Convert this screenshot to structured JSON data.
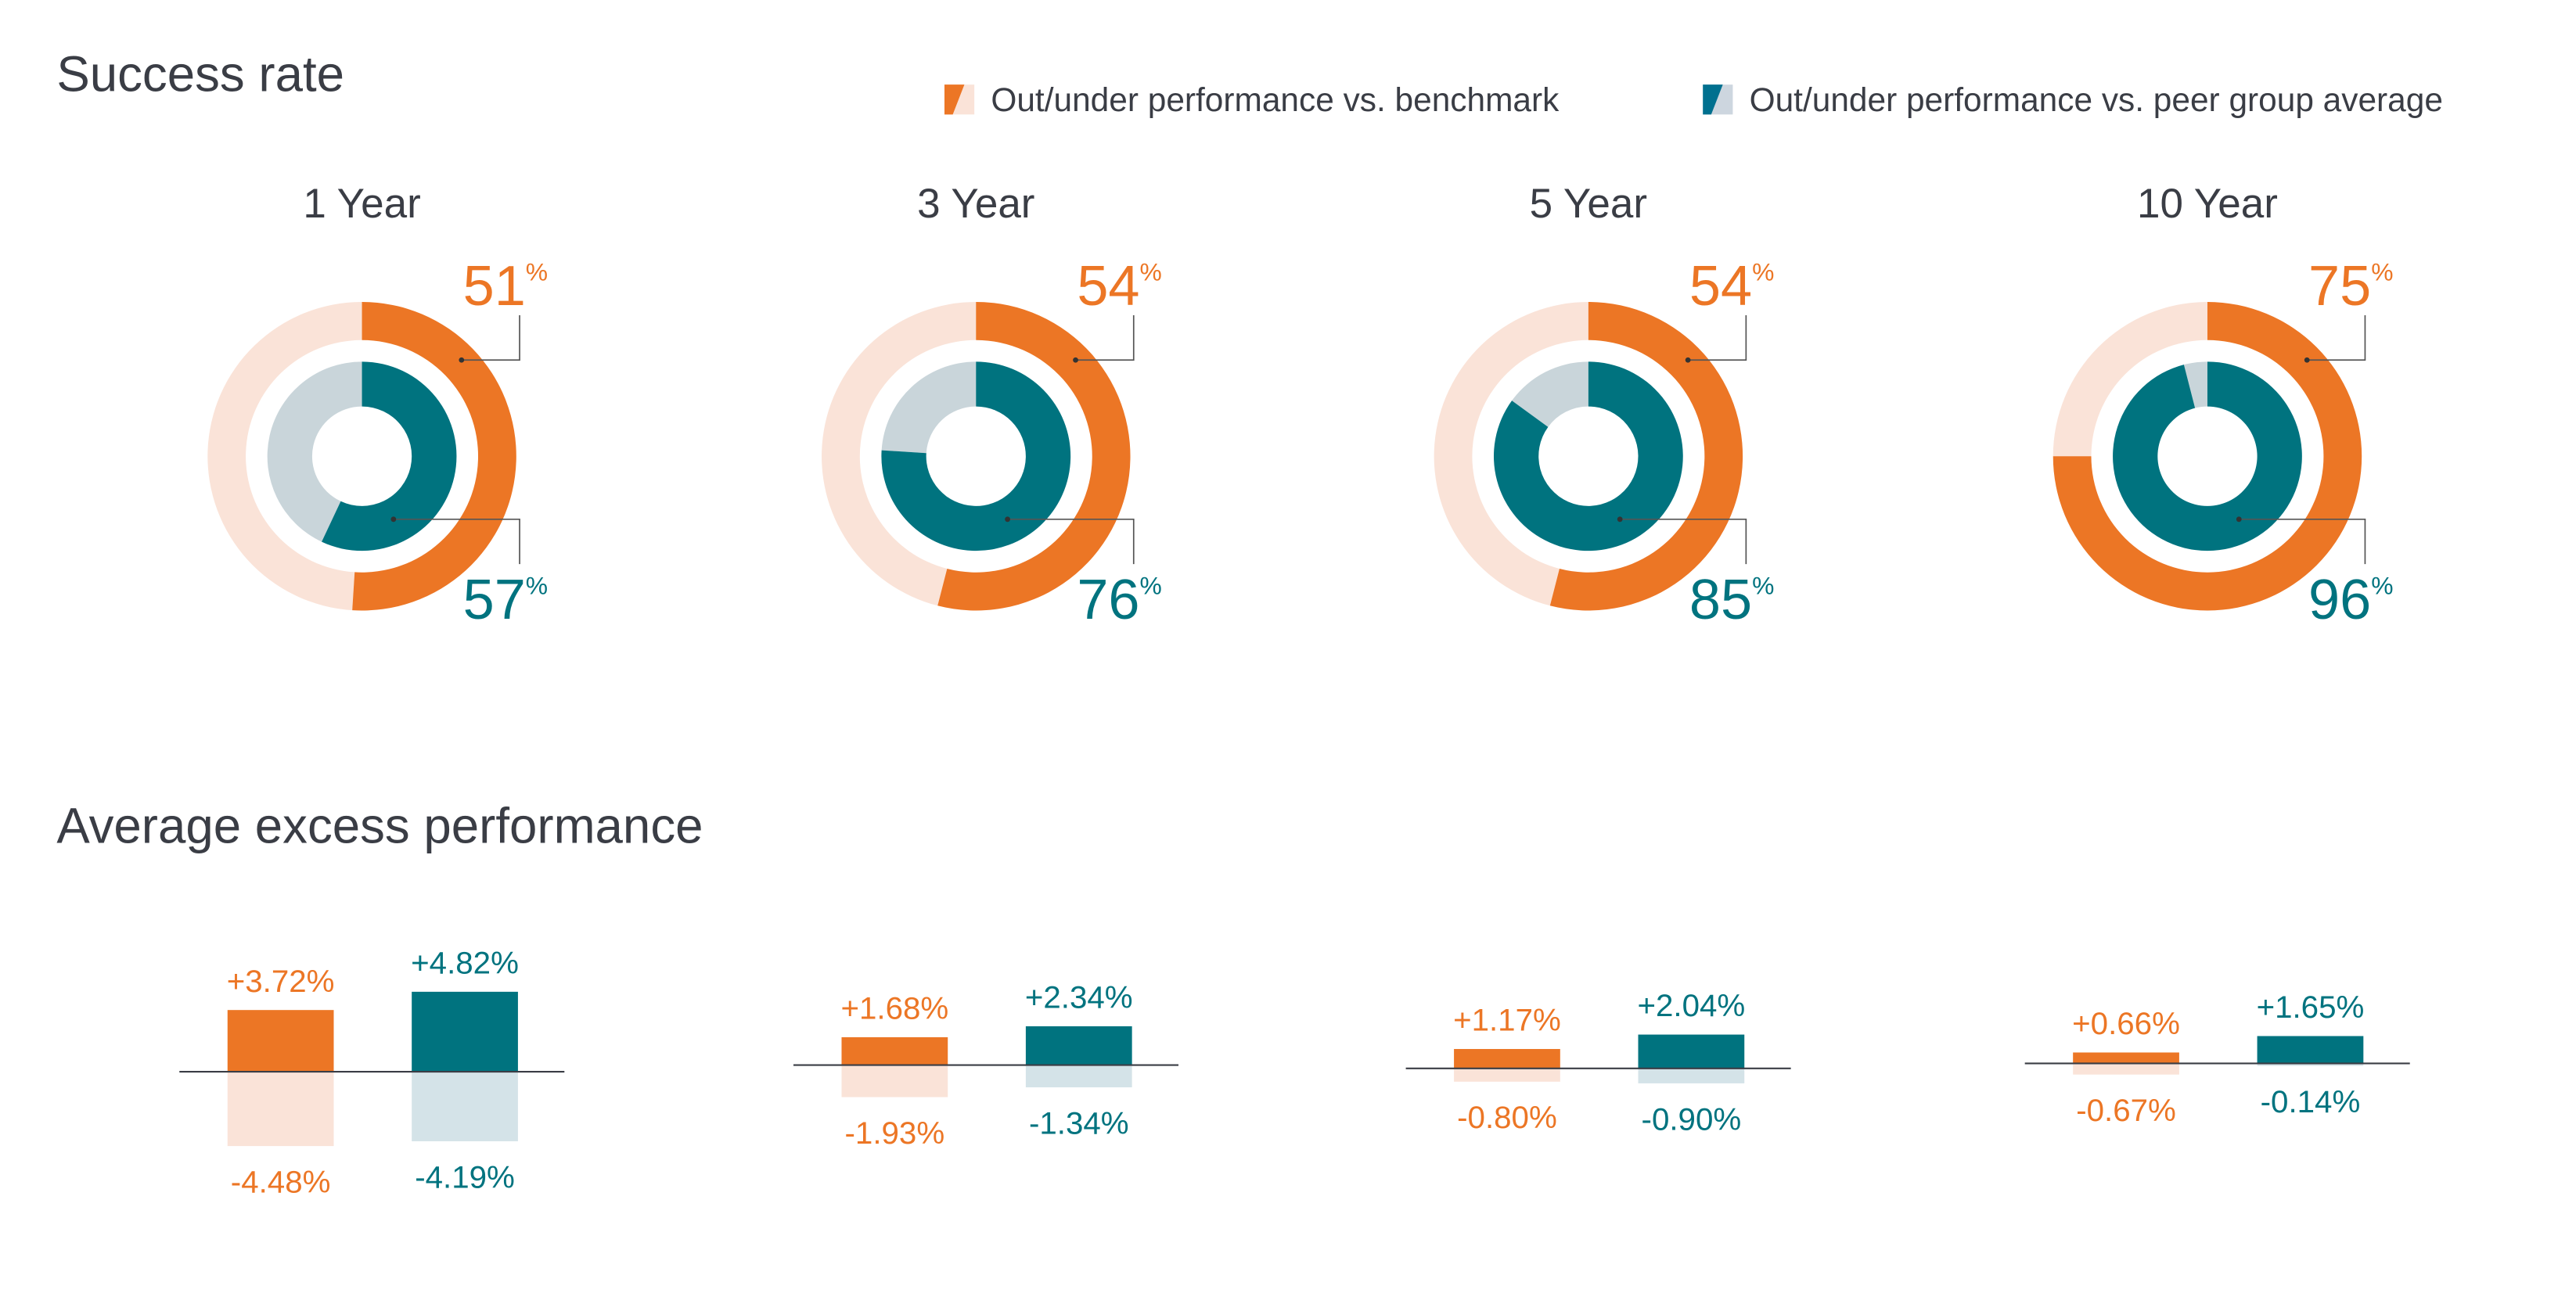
{
  "colors": {
    "benchmark": "#EC7625",
    "benchmark_light": "#FAE3D8",
    "peer": "#00737F",
    "peer_light": "#D4E3E8",
    "peer_donut_rest": "#C9D5DA",
    "legend_peer": "#00708F",
    "text": "#3A3D45"
  },
  "legend": {
    "benchmark": "Out/under performance vs. benchmark",
    "peer": "Out/under performance vs. peer group average"
  },
  "chart_data": [
    {
      "type": "donut",
      "title": "Success rate",
      "categories": [
        "1 Year",
        "3 Year",
        "5 Year",
        "10 Year"
      ],
      "series": [
        {
          "name": "Out/under performance vs. benchmark",
          "values": [
            51,
            54,
            54,
            75
          ],
          "labels": [
            "51",
            "54",
            "54",
            "75"
          ]
        },
        {
          "name": "Out/under performance vs. peer group average",
          "values": [
            57,
            76,
            85,
            96
          ],
          "labels": [
            "57",
            "76",
            "85",
            "96"
          ]
        }
      ],
      "unit": "%"
    },
    {
      "type": "bar",
      "title": "Average excess performance",
      "categories": [
        "1 Year",
        "3 Year",
        "5 Year",
        "10 Year"
      ],
      "series": [
        {
          "name": "Benchmark outperformance",
          "values": [
            3.72,
            1.68,
            1.17,
            0.66
          ],
          "labels": [
            "+3.72%",
            "+1.68%",
            "+1.17%",
            "+0.66%"
          ]
        },
        {
          "name": "Peer outperformance",
          "values": [
            4.82,
            2.34,
            2.04,
            1.65
          ],
          "labels": [
            "+4.82%",
            "+2.34%",
            "+2.04%",
            "+1.65%"
          ]
        },
        {
          "name": "Benchmark underperformance",
          "values": [
            -4.48,
            -1.93,
            -0.8,
            -0.67
          ],
          "labels": [
            "-4.48%",
            "-1.93%",
            "-0.80%",
            "-0.67%"
          ]
        },
        {
          "name": "Peer underperformance",
          "values": [
            -4.19,
            -1.34,
            -0.9,
            -0.14
          ],
          "labels": [
            "-4.19%",
            "-1.34%",
            "-0.90%",
            "-0.14%"
          ]
        }
      ]
    }
  ]
}
